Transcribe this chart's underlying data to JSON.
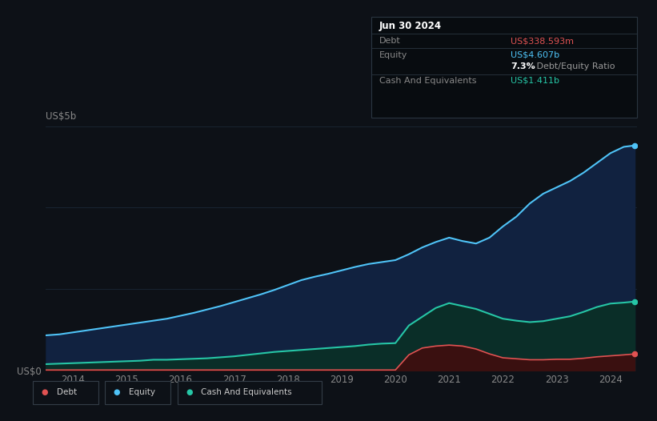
{
  "background_color": "#0d1117",
  "plot_bg_color": "#0d1117",
  "grid_color": "#1e2d3d",
  "title_box": {
    "date": "Jun 30 2024",
    "debt_label": "Debt",
    "debt_value": "US$338.593m",
    "debt_color": "#e05252",
    "equity_label": "Equity",
    "equity_value": "US$4.607b",
    "equity_color": "#4fc3f7",
    "ratio_bold": "7.3%",
    "ratio_text": " Debt/Equity Ratio",
    "ratio_bold_color": "#ffffff",
    "ratio_text_color": "#999999",
    "cash_label": "Cash And Equivalents",
    "cash_value": "US$1.411b",
    "cash_color": "#26c6a6",
    "box_bg": "#080c10",
    "box_border": "#2a3540",
    "label_color": "#888888",
    "date_color": "#ffffff"
  },
  "y_label_top": "US$5b",
  "y_label_bottom": "US$0",
  "x_ticks": [
    "2014",
    "2015",
    "2016",
    "2017",
    "2018",
    "2019",
    "2020",
    "2021",
    "2022",
    "2023",
    "2024"
  ],
  "equity_color": "#4fc3f7",
  "equity_fill": "#112240",
  "debt_color": "#e05252",
  "debt_fill": "#3a1010",
  "cash_color": "#26c6a6",
  "cash_fill": "#0a2e28",
  "legend": [
    {
      "label": "Debt",
      "color": "#e05252"
    },
    {
      "label": "Equity",
      "color": "#4fc3f7"
    },
    {
      "label": "Cash And Equivalents",
      "color": "#26c6a6"
    }
  ],
  "years": [
    2013.5,
    2013.75,
    2014.0,
    2014.25,
    2014.5,
    2014.75,
    2015.0,
    2015.25,
    2015.5,
    2015.75,
    2016.0,
    2016.25,
    2016.5,
    2016.75,
    2017.0,
    2017.25,
    2017.5,
    2017.75,
    2018.0,
    2018.25,
    2018.5,
    2018.75,
    2019.0,
    2019.25,
    2019.5,
    2019.75,
    2020.0,
    2020.25,
    2020.5,
    2020.75,
    2021.0,
    2021.25,
    2021.5,
    2021.75,
    2022.0,
    2022.25,
    2022.5,
    2022.75,
    2023.0,
    2023.25,
    2023.5,
    2023.75,
    2024.0,
    2024.25,
    2024.45
  ],
  "equity": [
    0.72,
    0.74,
    0.78,
    0.82,
    0.86,
    0.9,
    0.94,
    0.98,
    1.02,
    1.06,
    1.12,
    1.18,
    1.25,
    1.32,
    1.4,
    1.48,
    1.56,
    1.65,
    1.75,
    1.85,
    1.92,
    1.98,
    2.05,
    2.12,
    2.18,
    2.22,
    2.26,
    2.38,
    2.52,
    2.63,
    2.72,
    2.65,
    2.6,
    2.72,
    2.95,
    3.15,
    3.42,
    3.62,
    3.75,
    3.88,
    4.05,
    4.25,
    4.45,
    4.58,
    4.607
  ],
  "cash": [
    0.13,
    0.14,
    0.15,
    0.16,
    0.17,
    0.18,
    0.19,
    0.2,
    0.22,
    0.22,
    0.23,
    0.24,
    0.25,
    0.27,
    0.29,
    0.32,
    0.35,
    0.38,
    0.4,
    0.42,
    0.44,
    0.46,
    0.48,
    0.5,
    0.53,
    0.55,
    0.56,
    0.92,
    1.1,
    1.28,
    1.38,
    1.32,
    1.26,
    1.16,
    1.06,
    1.02,
    0.99,
    1.01,
    1.06,
    1.11,
    1.2,
    1.3,
    1.37,
    1.39,
    1.411
  ],
  "debt": [
    0.01,
    0.01,
    0.01,
    0.01,
    0.01,
    0.01,
    0.01,
    0.01,
    0.01,
    0.01,
    0.01,
    0.01,
    0.01,
    0.01,
    0.01,
    0.01,
    0.01,
    0.01,
    0.01,
    0.01,
    0.01,
    0.01,
    0.01,
    0.01,
    0.01,
    0.01,
    0.01,
    0.32,
    0.46,
    0.5,
    0.52,
    0.5,
    0.44,
    0.34,
    0.26,
    0.24,
    0.22,
    0.22,
    0.23,
    0.23,
    0.25,
    0.28,
    0.3,
    0.32,
    0.338
  ],
  "ylim": [
    0,
    5.0
  ],
  "xlim": [
    2013.5,
    2024.5
  ]
}
